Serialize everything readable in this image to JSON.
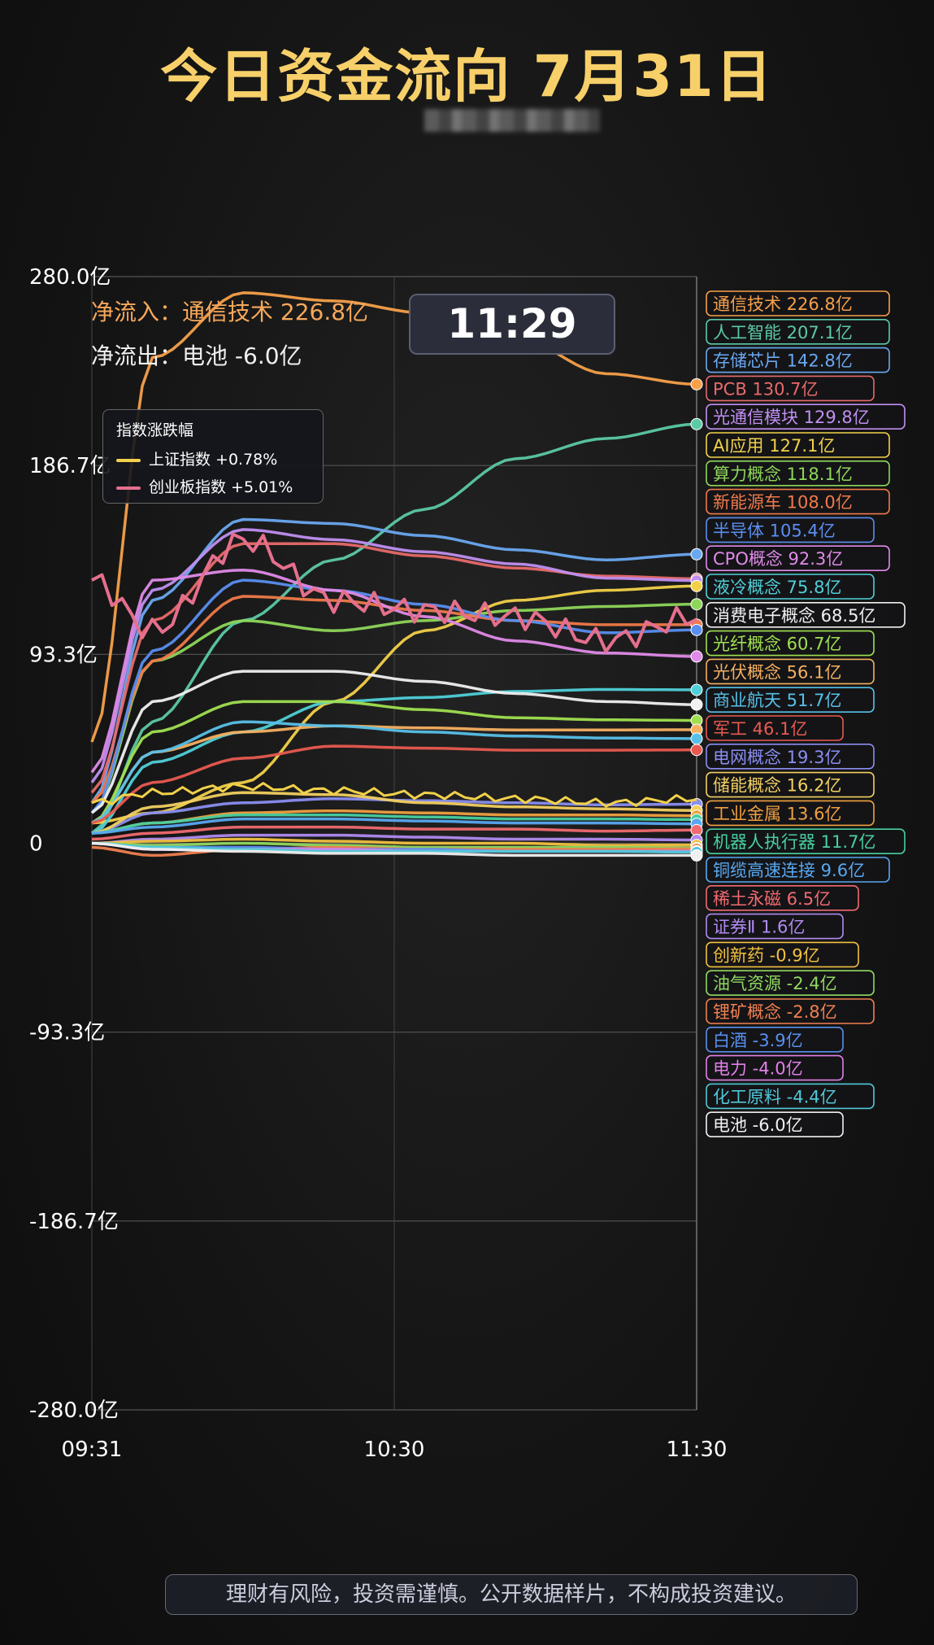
{
  "title": "今日资金流向 7月31日",
  "time_badge": "11:29",
  "net_inflow_label": "净流入：通信技术 226.8亿",
  "net_outflow_label": "净流出：电池 -6.0亿",
  "legend": {
    "title": "指数涨跌幅",
    "items": [
      {
        "label": "上证指数 +0.78%",
        "color": "#f2d14a"
      },
      {
        "label": "创业板指数 +5.01%",
        "color": "#e56f8d"
      }
    ]
  },
  "disclaimer": "理财有风险，投资需谨慎。公开数据样片，不构成投资建议。",
  "chart_data": {
    "type": "line",
    "x_ticks": [
      "09:31",
      "10:30",
      "11:30"
    ],
    "y_ticks": [
      "280.0亿",
      "186.7亿",
      "93.3亿",
      "0",
      "-93.3亿",
      "-186.7亿",
      "-280.0亿"
    ],
    "ylim": [
      -280,
      280
    ],
    "grid": true,
    "x_positions": [
      0,
      0.1,
      0.25,
      0.4,
      0.55,
      0.7,
      0.85,
      1.0
    ],
    "series": [
      {
        "name": "通信技术",
        "label": "通信技术 226.8亿",
        "color": "#f7a04a",
        "values": [
          50,
          240,
          272,
          268,
          262,
          250,
          232,
          226.8
        ]
      },
      {
        "name": "人工智能",
        "label": "人工智能 207.1亿",
        "color": "#5cc9a7",
        "values": [
          5,
          60,
          110,
          140,
          165,
          190,
          200,
          207.1
        ]
      },
      {
        "name": "存储芯片",
        "label": "存储芯片 142.8亿",
        "color": "#6aa8f0",
        "values": [
          20,
          120,
          160,
          158,
          152,
          145,
          140,
          142.8
        ]
      },
      {
        "name": "PCB",
        "label": "PCB 130.7亿",
        "color": "#e86a6a",
        "values": [
          25,
          110,
          148,
          148,
          142,
          136,
          132,
          130.7
        ]
      },
      {
        "name": "光通信模块",
        "label": "光通信模块 129.8亿",
        "color": "#c08ff0",
        "values": [
          30,
          125,
          155,
          150,
          144,
          138,
          131,
          129.8
        ]
      },
      {
        "name": "AI应用",
        "label": "AI应用 127.1亿",
        "color": "#f2d14a",
        "values": [
          10,
          15,
          30,
          70,
          105,
          120,
          125,
          127.1
        ]
      },
      {
        "name": "算力概念",
        "label": "算力概念 118.1亿",
        "color": "#8ed65a",
        "values": [
          15,
          90,
          110,
          105,
          110,
          115,
          117,
          118.1
        ]
      },
      {
        "name": "新能源车",
        "label": "新能源车 108.0亿",
        "color": "#f07a4a",
        "values": [
          20,
          90,
          122,
          120,
          115,
          110,
          108,
          108.0
        ]
      },
      {
        "name": "半导体",
        "label": "半导体 105.4亿",
        "color": "#5a8ef0",
        "values": [
          15,
          95,
          130,
          125,
          118,
          110,
          104,
          105.4
        ]
      },
      {
        "name": "CPO概念",
        "label": "CPO概念 92.3亿",
        "color": "#e08ae8",
        "values": [
          35,
          130,
          135,
          125,
          112,
          100,
          94,
          92.3
        ]
      },
      {
        "name": "液冷概念",
        "label": "液冷概念 75.8亿",
        "color": "#4fd0d8",
        "values": [
          5,
          40,
          55,
          70,
          72,
          75,
          76,
          75.8
        ]
      },
      {
        "name": "消费电子概念",
        "label": "消费电子概念 68.5亿",
        "color": "#f0f0f0",
        "values": [
          15,
          70,
          85,
          85,
          80,
          74,
          70,
          68.5
        ]
      },
      {
        "name": "光纤概念",
        "label": "光纤概念 60.7亿",
        "color": "#a0e050",
        "values": [
          10,
          55,
          70,
          70,
          66,
          62,
          61,
          60.7
        ]
      },
      {
        "name": "光伏概念",
        "label": "光伏概念 56.1亿",
        "color": "#f5b060",
        "values": [
          10,
          45,
          55,
          58,
          57,
          56,
          56,
          56.1
        ]
      },
      {
        "name": "商业航天",
        "label": "商业航天 51.7亿",
        "color": "#58c0e8",
        "values": [
          10,
          45,
          60,
          58,
          55,
          53,
          52,
          51.7
        ]
      },
      {
        "name": "军工",
        "label": "军工 46.1亿",
        "color": "#e85a50",
        "values": [
          10,
          30,
          42,
          48,
          47,
          46,
          46,
          46.1
        ]
      },
      {
        "name": "电网概念",
        "label": "电网概念 19.3亿",
        "color": "#8a8ef0",
        "values": [
          5,
          15,
          20,
          22,
          21,
          20,
          19,
          19.3
        ]
      },
      {
        "name": "储能概念",
        "label": "储能概念 16.2亿",
        "color": "#f2d060",
        "values": [
          5,
          18,
          25,
          24,
          20,
          18,
          17,
          16.2
        ]
      },
      {
        "name": "工业金属",
        "label": "工业金属 13.6亿",
        "color": "#f0a040",
        "values": [
          5,
          10,
          15,
          16,
          15,
          14,
          14,
          13.6
        ]
      },
      {
        "name": "机器人执行器",
        "label": "机器人执行器 11.7亿",
        "color": "#48d0a0",
        "values": [
          5,
          10,
          14,
          14,
          13,
          12,
          12,
          11.7
        ]
      },
      {
        "name": "铜缆高速连接",
        "label": "铜缆高速连接 9.6亿",
        "color": "#58a8f0",
        "values": [
          5,
          8,
          12,
          12,
          11,
          10,
          10,
          9.6
        ]
      },
      {
        "name": "稀土永磁",
        "label": "稀土永磁 6.5亿",
        "color": "#f06a70",
        "values": [
          2,
          5,
          8,
          8,
          7,
          7,
          6,
          6.5
        ]
      },
      {
        "name": "证券Ⅱ",
        "label": "证券Ⅱ 1.6亿",
        "color": "#b08af0",
        "values": [
          0,
          2,
          4,
          4,
          3,
          2,
          2,
          1.6
        ]
      },
      {
        "name": "创新药",
        "label": "创新药 -0.9亿",
        "color": "#f2c040",
        "values": [
          0,
          1,
          2,
          1,
          0,
          0,
          -1,
          -0.9
        ]
      },
      {
        "name": "油气资源",
        "label": "油气资源 -2.4亿",
        "color": "#90d860",
        "values": [
          0,
          -1,
          0,
          -1,
          -2,
          -2,
          -2,
          -2.4
        ]
      },
      {
        "name": "锂矿概念",
        "label": "锂矿概念 -2.8亿",
        "color": "#f08050",
        "values": [
          -2,
          -6,
          -3,
          -2,
          -3,
          -3,
          -3,
          -2.8
        ]
      },
      {
        "name": "白酒",
        "label": "白酒 -3.9亿",
        "color": "#5890f0",
        "values": [
          0,
          -2,
          -2,
          -3,
          -3,
          -4,
          -4,
          -3.9
        ]
      },
      {
        "name": "电力",
        "label": "电力 -4.0亿",
        "color": "#e080e8",
        "values": [
          0,
          -3,
          -3,
          -3,
          -4,
          -4,
          -4,
          -4.0
        ]
      },
      {
        "name": "化工原料",
        "label": "化工原料 -4.4亿",
        "color": "#50c8d8",
        "values": [
          0,
          -2,
          -3,
          -4,
          -4,
          -4,
          -4,
          -4.4
        ]
      },
      {
        "name": "电池",
        "label": "电池 -6.0亿",
        "color": "#f0f0f0",
        "values": [
          0,
          -3,
          -4,
          -5,
          -5,
          -6,
          -6,
          -6.0
        ]
      }
    ],
    "index_series": [
      {
        "name": "上证指数",
        "color": "#f2d14a",
        "values": [
          20,
          25,
          28,
          26,
          24,
          22,
          20,
          22
        ]
      },
      {
        "name": "创业板指数",
        "color": "#e56f8d",
        "values": [
          130,
          105,
          150,
          120,
          115,
          112,
          100,
          112
        ]
      }
    ]
  }
}
